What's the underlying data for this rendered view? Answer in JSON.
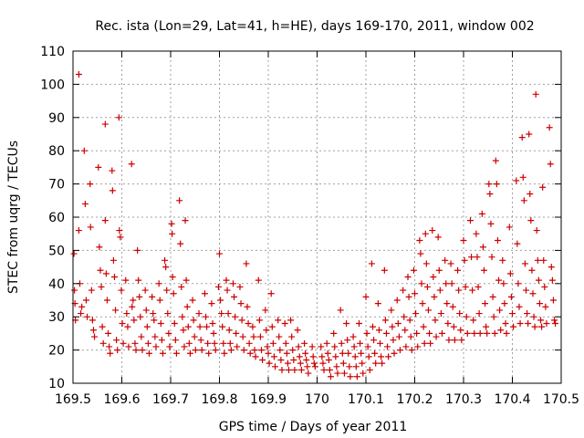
{
  "chart_data": {
    "type": "scatter",
    "title": "Rec. ista (Lon=29, Lat=41, h=HE), days 169-170, 2011, window 002",
    "xlabel": "GPS time / Days of year 2011",
    "ylabel": "STEC from uqrg / TECUs",
    "xlim": [
      169.5,
      170.5
    ],
    "ylim": [
      10,
      110
    ],
    "x_ticks": [
      "169.5",
      "169.6",
      "169.7",
      "169.8",
      "169.9",
      "170",
      "170.1",
      "170.2",
      "170.3",
      "170.4",
      "170.5"
    ],
    "y_ticks": [
      "10",
      "20",
      "30",
      "40",
      "50",
      "60",
      "70",
      "80",
      "90",
      "100",
      "110"
    ],
    "grid": true,
    "marker": "+",
    "color": "#cc0000",
    "points": [
      [
        169.502,
        49
      ],
      [
        169.503,
        38
      ],
      [
        169.504,
        34
      ],
      [
        169.505,
        29
      ],
      [
        169.512,
        103
      ],
      [
        169.512,
        56
      ],
      [
        169.514,
        40
      ],
      [
        169.516,
        31
      ],
      [
        169.518,
        33
      ],
      [
        169.523,
        80
      ],
      [
        169.525,
        64
      ],
      [
        169.527,
        35
      ],
      [
        169.529,
        30
      ],
      [
        169.535,
        70
      ],
      [
        169.536,
        57
      ],
      [
        169.538,
        38
      ],
      [
        169.54,
        29
      ],
      [
        169.542,
        26
      ],
      [
        169.544,
        24
      ],
      [
        169.552,
        75
      ],
      [
        169.554,
        51
      ],
      [
        169.556,
        44
      ],
      [
        169.558,
        39
      ],
      [
        169.56,
        27
      ],
      [
        169.562,
        22
      ],
      [
        169.566,
        88
      ],
      [
        169.566,
        59
      ],
      [
        169.568,
        43
      ],
      [
        169.57,
        35
      ],
      [
        169.572,
        25
      ],
      [
        169.574,
        21
      ],
      [
        169.576,
        19
      ],
      [
        169.58,
        74
      ],
      [
        169.581,
        68
      ],
      [
        169.583,
        47
      ],
      [
        169.585,
        42
      ],
      [
        169.587,
        32
      ],
      [
        169.589,
        23
      ],
      [
        169.591,
        20
      ],
      [
        169.594,
        90
      ],
      [
        169.595,
        56
      ],
      [
        169.597,
        54
      ],
      [
        169.599,
        38
      ],
      [
        169.601,
        28
      ],
      [
        169.603,
        22
      ],
      [
        169.608,
        41
      ],
      [
        169.61,
        31
      ],
      [
        169.612,
        27
      ],
      [
        169.614,
        21
      ],
      [
        169.62,
        76
      ],
      [
        169.621,
        33
      ],
      [
        169.623,
        35
      ],
      [
        169.625,
        29
      ],
      [
        169.627,
        22
      ],
      [
        169.629,
        20
      ],
      [
        169.632,
        50
      ],
      [
        169.634,
        41
      ],
      [
        169.636,
        36
      ],
      [
        169.638,
        30
      ],
      [
        169.64,
        24
      ],
      [
        169.642,
        20
      ],
      [
        169.648,
        38
      ],
      [
        169.65,
        32
      ],
      [
        169.652,
        27
      ],
      [
        169.654,
        22
      ],
      [
        169.656,
        19
      ],
      [
        169.662,
        36
      ],
      [
        169.664,
        31
      ],
      [
        169.666,
        29
      ],
      [
        169.668,
        24
      ],
      [
        169.67,
        21
      ],
      [
        169.676,
        40
      ],
      [
        169.678,
        35
      ],
      [
        169.68,
        28
      ],
      [
        169.682,
        23
      ],
      [
        169.684,
        19
      ],
      [
        169.688,
        47
      ],
      [
        169.69,
        45
      ],
      [
        169.692,
        38
      ],
      [
        169.694,
        31
      ],
      [
        169.696,
        25
      ],
      [
        169.698,
        21
      ],
      [
        169.702,
        58
      ],
      [
        169.703,
        55
      ],
      [
        169.704,
        42
      ],
      [
        169.706,
        37
      ],
      [
        169.708,
        28
      ],
      [
        169.71,
        23
      ],
      [
        169.712,
        19
      ],
      [
        169.718,
        65
      ],
      [
        169.72,
        52
      ],
      [
        169.722,
        39
      ],
      [
        169.724,
        30
      ],
      [
        169.726,
        26
      ],
      [
        169.728,
        21
      ],
      [
        169.73,
        59
      ],
      [
        169.732,
        41
      ],
      [
        169.734,
        33
      ],
      [
        169.736,
        27
      ],
      [
        169.738,
        22
      ],
      [
        169.74,
        19
      ],
      [
        169.745,
        35
      ],
      [
        169.747,
        29
      ],
      [
        169.749,
        24
      ],
      [
        169.751,
        20
      ],
      [
        169.758,
        31
      ],
      [
        169.76,
        27
      ],
      [
        169.762,
        23
      ],
      [
        169.764,
        20
      ],
      [
        169.77,
        37
      ],
      [
        169.772,
        30
      ],
      [
        169.774,
        27
      ],
      [
        169.776,
        22
      ],
      [
        169.778,
        19
      ],
      [
        169.784,
        34
      ],
      [
        169.786,
        28
      ],
      [
        169.788,
        25
      ],
      [
        169.79,
        22
      ],
      [
        169.792,
        20
      ],
      [
        169.798,
        39
      ],
      [
        169.8,
        49
      ],
      [
        169.802,
        35
      ],
      [
        169.804,
        31
      ],
      [
        169.806,
        27
      ],
      [
        169.808,
        22
      ],
      [
        169.81,
        19
      ],
      [
        169.814,
        41
      ],
      [
        169.816,
        38
      ],
      [
        169.818,
        31
      ],
      [
        169.82,
        26
      ],
      [
        169.822,
        22
      ],
      [
        169.824,
        20
      ],
      [
        169.828,
        40
      ],
      [
        169.83,
        36
      ],
      [
        169.832,
        30
      ],
      [
        169.834,
        25
      ],
      [
        169.836,
        21
      ],
      [
        169.842,
        39
      ],
      [
        169.844,
        34
      ],
      [
        169.846,
        29
      ],
      [
        169.848,
        24
      ],
      [
        169.85,
        20
      ],
      [
        169.855,
        46
      ],
      [
        169.857,
        33
      ],
      [
        169.859,
        28
      ],
      [
        169.861,
        22
      ],
      [
        169.863,
        19
      ],
      [
        169.868,
        27
      ],
      [
        169.87,
        24
      ],
      [
        169.872,
        20
      ],
      [
        169.874,
        18
      ],
      [
        169.88,
        41
      ],
      [
        169.882,
        29
      ],
      [
        169.884,
        24
      ],
      [
        169.886,
        20
      ],
      [
        169.888,
        17
      ],
      [
        169.894,
        32
      ],
      [
        169.896,
        26
      ],
      [
        169.898,
        21
      ],
      [
        169.9,
        19
      ],
      [
        169.902,
        16
      ],
      [
        169.906,
        37
      ],
      [
        169.908,
        27
      ],
      [
        169.91,
        22
      ],
      [
        169.912,
        18
      ],
      [
        169.914,
        15
      ],
      [
        169.92,
        29
      ],
      [
        169.922,
        24
      ],
      [
        169.924,
        20
      ],
      [
        169.926,
        17
      ],
      [
        169.928,
        14
      ],
      [
        169.934,
        28
      ],
      [
        169.936,
        22
      ],
      [
        169.938,
        19
      ],
      [
        169.94,
        16
      ],
      [
        169.942,
        14
      ],
      [
        169.946,
        29
      ],
      [
        169.948,
        24
      ],
      [
        169.95,
        20
      ],
      [
        169.952,
        17
      ],
      [
        169.954,
        14
      ],
      [
        169.96,
        26
      ],
      [
        169.962,
        21
      ],
      [
        169.964,
        18
      ],
      [
        169.966,
        16
      ],
      [
        169.968,
        14
      ],
      [
        169.974,
        22
      ],
      [
        169.976,
        19
      ],
      [
        169.978,
        17
      ],
      [
        169.98,
        15
      ],
      [
        169.982,
        13
      ],
      [
        169.99,
        21
      ],
      [
        169.992,
        18
      ],
      [
        169.994,
        16
      ],
      [
        169.996,
        15
      ],
      [
        170.008,
        21
      ],
      [
        170.01,
        18
      ],
      [
        170.012,
        16
      ],
      [
        170.014,
        14
      ],
      [
        170.02,
        22
      ],
      [
        170.022,
        19
      ],
      [
        170.024,
        17
      ],
      [
        170.026,
        14
      ],
      [
        170.028,
        12
      ],
      [
        170.034,
        25
      ],
      [
        170.036,
        21
      ],
      [
        170.038,
        18
      ],
      [
        170.04,
        15
      ],
      [
        170.042,
        13
      ],
      [
        170.048,
        32
      ],
      [
        170.05,
        22
      ],
      [
        170.052,
        19
      ],
      [
        170.054,
        16
      ],
      [
        170.056,
        13
      ],
      [
        170.06,
        28
      ],
      [
        170.062,
        23
      ],
      [
        170.064,
        19
      ],
      [
        170.066,
        15
      ],
      [
        170.068,
        12
      ],
      [
        170.074,
        24
      ],
      [
        170.076,
        21
      ],
      [
        170.078,
        18
      ],
      [
        170.08,
        15
      ],
      [
        170.082,
        12
      ],
      [
        170.086,
        28
      ],
      [
        170.088,
        22
      ],
      [
        170.09,
        19
      ],
      [
        170.092,
        16
      ],
      [
        170.094,
        13
      ],
      [
        170.1,
        36
      ],
      [
        170.102,
        25
      ],
      [
        170.104,
        21
      ],
      [
        170.106,
        18
      ],
      [
        170.108,
        14
      ],
      [
        170.112,
        46
      ],
      [
        170.114,
        27
      ],
      [
        170.116,
        23
      ],
      [
        170.118,
        19
      ],
      [
        170.12,
        16
      ],
      [
        170.125,
        34
      ],
      [
        170.127,
        26
      ],
      [
        170.129,
        22
      ],
      [
        170.131,
        18
      ],
      [
        170.133,
        16
      ],
      [
        170.138,
        44
      ],
      [
        170.14,
        29
      ],
      [
        170.142,
        25
      ],
      [
        170.144,
        21
      ],
      [
        170.146,
        18
      ],
      [
        170.152,
        32
      ],
      [
        170.154,
        27
      ],
      [
        170.156,
        23
      ],
      [
        170.158,
        19
      ],
      [
        170.164,
        35
      ],
      [
        170.166,
        28
      ],
      [
        170.168,
        24
      ],
      [
        170.17,
        20
      ],
      [
        170.176,
        38
      ],
      [
        170.178,
        30
      ],
      [
        170.18,
        26
      ],
      [
        170.182,
        21
      ],
      [
        170.186,
        42
      ],
      [
        170.188,
        36
      ],
      [
        170.19,
        29
      ],
      [
        170.192,
        24
      ],
      [
        170.194,
        20
      ],
      [
        170.198,
        44
      ],
      [
        170.2,
        37
      ],
      [
        170.202,
        31
      ],
      [
        170.204,
        25
      ],
      [
        170.206,
        21
      ],
      [
        170.21,
        53
      ],
      [
        170.212,
        49
      ],
      [
        170.214,
        40
      ],
      [
        170.216,
        34
      ],
      [
        170.218,
        27
      ],
      [
        170.22,
        22
      ],
      [
        170.222,
        55
      ],
      [
        170.224,
        46
      ],
      [
        170.226,
        39
      ],
      [
        170.228,
        32
      ],
      [
        170.23,
        25
      ],
      [
        170.232,
        22
      ],
      [
        170.236,
        56
      ],
      [
        170.238,
        42
      ],
      [
        170.24,
        36
      ],
      [
        170.242,
        29
      ],
      [
        170.244,
        24
      ],
      [
        170.248,
        54
      ],
      [
        170.25,
        44
      ],
      [
        170.252,
        38
      ],
      [
        170.254,
        31
      ],
      [
        170.256,
        25
      ],
      [
        170.262,
        47
      ],
      [
        170.264,
        40
      ],
      [
        170.266,
        34
      ],
      [
        170.268,
        28
      ],
      [
        170.27,
        23
      ],
      [
        170.274,
        46
      ],
      [
        170.276,
        40
      ],
      [
        170.278,
        33
      ],
      [
        170.28,
        27
      ],
      [
        170.282,
        23
      ],
      [
        170.288,
        44
      ],
      [
        170.29,
        38
      ],
      [
        170.292,
        31
      ],
      [
        170.294,
        26
      ],
      [
        170.296,
        23
      ],
      [
        170.3,
        53
      ],
      [
        170.302,
        47
      ],
      [
        170.304,
        39
      ],
      [
        170.306,
        30
      ],
      [
        170.308,
        25
      ],
      [
        170.314,
        59
      ],
      [
        170.316,
        48
      ],
      [
        170.318,
        38
      ],
      [
        170.32,
        29
      ],
      [
        170.322,
        25
      ],
      [
        170.326,
        55
      ],
      [
        170.328,
        48
      ],
      [
        170.33,
        39
      ],
      [
        170.332,
        31
      ],
      [
        170.334,
        25
      ],
      [
        170.338,
        61
      ],
      [
        170.34,
        51
      ],
      [
        170.342,
        44
      ],
      [
        170.344,
        34
      ],
      [
        170.346,
        27
      ],
      [
        170.348,
        25
      ],
      [
        170.352,
        70
      ],
      [
        170.354,
        67
      ],
      [
        170.356,
        58
      ],
      [
        170.358,
        48
      ],
      [
        170.36,
        36
      ],
      [
        170.362,
        30
      ],
      [
        170.364,
        25
      ],
      [
        170.366,
        77
      ],
      [
        170.368,
        70
      ],
      [
        170.37,
        53
      ],
      [
        170.372,
        41
      ],
      [
        170.374,
        32
      ],
      [
        170.376,
        26
      ],
      [
        170.38,
        47
      ],
      [
        170.382,
        40
      ],
      [
        170.384,
        34
      ],
      [
        170.386,
        28
      ],
      [
        170.388,
        25
      ],
      [
        170.394,
        57
      ],
      [
        170.396,
        43
      ],
      [
        170.398,
        36
      ],
      [
        170.4,
        31
      ],
      [
        170.402,
        27
      ],
      [
        170.408,
        71
      ],
      [
        170.41,
        52
      ],
      [
        170.412,
        40
      ],
      [
        170.414,
        33
      ],
      [
        170.416,
        28
      ],
      [
        170.42,
        84
      ],
      [
        170.422,
        72
      ],
      [
        170.424,
        65
      ],
      [
        170.426,
        46
      ],
      [
        170.428,
        38
      ],
      [
        170.43,
        31
      ],
      [
        170.432,
        28
      ],
      [
        170.434,
        85
      ],
      [
        170.436,
        67
      ],
      [
        170.438,
        59
      ],
      [
        170.44,
        44
      ],
      [
        170.442,
        37
      ],
      [
        170.444,
        30
      ],
      [
        170.446,
        27
      ],
      [
        170.448,
        97
      ],
      [
        170.45,
        56
      ],
      [
        170.452,
        47
      ],
      [
        170.454,
        41
      ],
      [
        170.456,
        34
      ],
      [
        170.458,
        29
      ],
      [
        170.46,
        27
      ],
      [
        170.462,
        69
      ],
      [
        170.464,
        47
      ],
      [
        170.466,
        39
      ],
      [
        170.468,
        33
      ],
      [
        170.47,
        28
      ],
      [
        170.476,
        87
      ],
      [
        170.478,
        76
      ],
      [
        170.48,
        45
      ],
      [
        170.482,
        41
      ],
      [
        170.484,
        35
      ],
      [
        170.486,
        29
      ],
      [
        170.488,
        28
      ]
    ]
  }
}
